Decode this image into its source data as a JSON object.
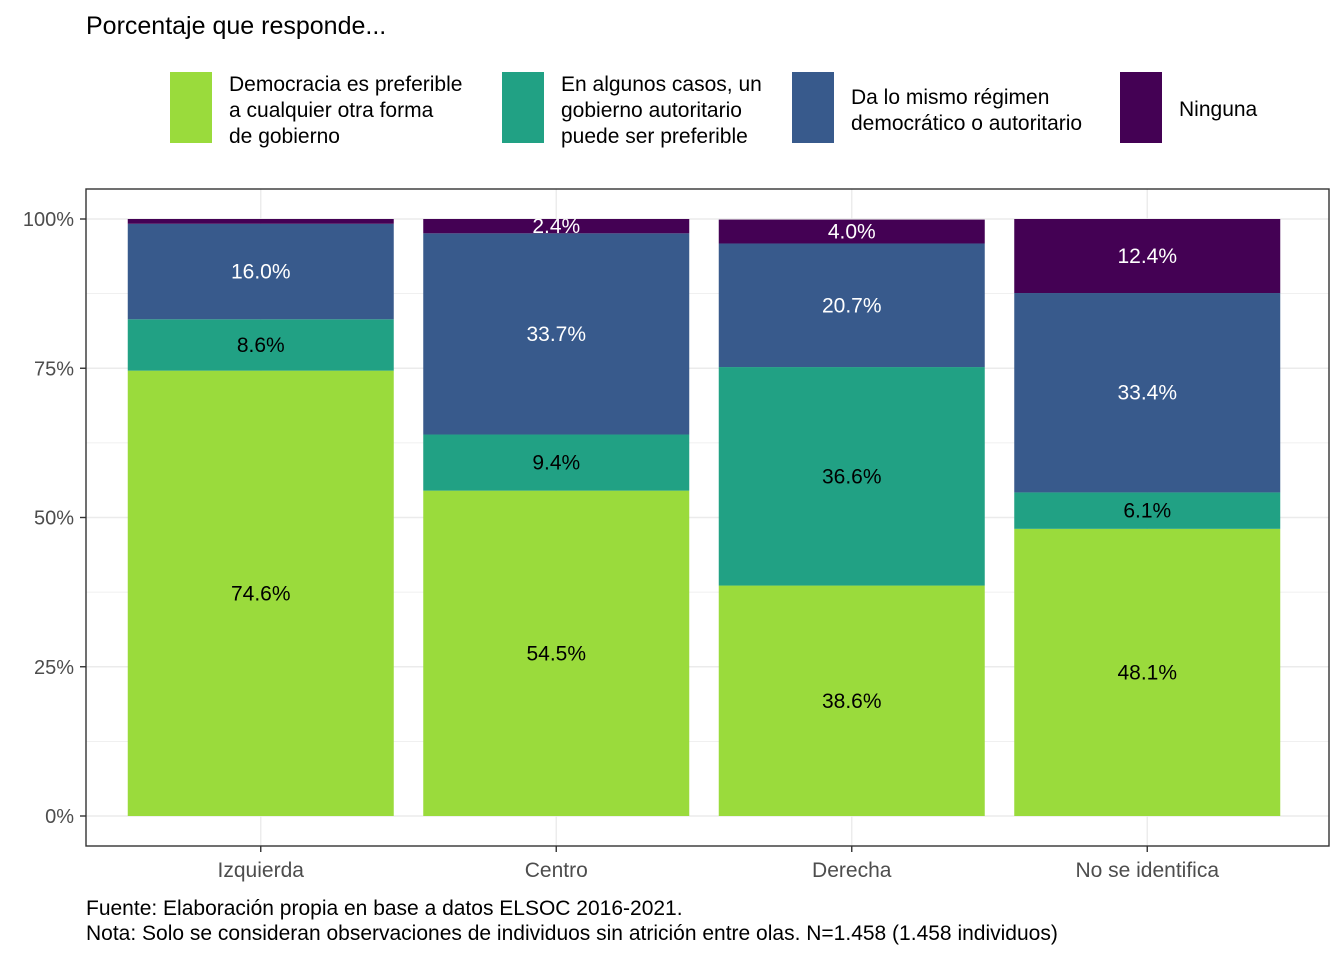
{
  "title": "Porcentaje que responde...",
  "legend": [
    {
      "label": "Democracia es preferible\na cualquier otra forma\nde gobierno",
      "color": "#9ADB3C"
    },
    {
      "label": "En algunos casos, un\ngobierno autoritario\npuede ser preferible",
      "color": "#21A184"
    },
    {
      "label": "Da lo mismo régimen\ndemocrático o autoritario",
      "color": "#385A8C"
    },
    {
      "label": "Ninguna",
      "color": "#440154"
    }
  ],
  "caption": {
    "line1": "Fuente: Elaboración propia en base a datos ELSOC 2016-2021.",
    "line2": "Nota: Solo se consideran observaciones de individuos sin atrición entre olas. N=1.458 (1.458 individuos)"
  },
  "chart_data": {
    "type": "bar",
    "stacked": true,
    "categories": [
      "Izquierda",
      "Centro",
      "Derecha",
      "No se identifica"
    ],
    "series": [
      {
        "name": "Democracia es preferible a cualquier otra forma de gobierno",
        "values": [
          74.6,
          54.5,
          38.6,
          48.1
        ],
        "labels": [
          "74.6%",
          "54.5%",
          "38.6%",
          "48.1%"
        ],
        "color": "#9ADB3C",
        "label_color": "#000000"
      },
      {
        "name": "En algunos casos, un gobierno autoritario puede ser preferible",
        "values": [
          8.6,
          9.4,
          36.6,
          6.1
        ],
        "labels": [
          "8.6%",
          "9.4%",
          "36.6%",
          "6.1%"
        ],
        "color": "#21A184",
        "label_color": "#000000"
      },
      {
        "name": "Da lo mismo régimen democrático o autoritario",
        "values": [
          16.0,
          33.7,
          20.7,
          33.4
        ],
        "labels": [
          "16.0%",
          "33.7%",
          "20.7%",
          "33.4%"
        ],
        "color": "#385A8C",
        "label_color": "#ffffff"
      },
      {
        "name": "Ninguna",
        "values": [
          0.8,
          2.4,
          4.0,
          12.4
        ],
        "labels": [
          "",
          "2.4%",
          "4.0%",
          "12.4%"
        ],
        "color": "#440154",
        "label_color": "#ffffff"
      }
    ],
    "yticks": [
      "0%",
      "25%",
      "50%",
      "75%",
      "100%"
    ],
    "ylim": [
      0,
      105
    ],
    "grid": true,
    "legend_position": "top"
  }
}
